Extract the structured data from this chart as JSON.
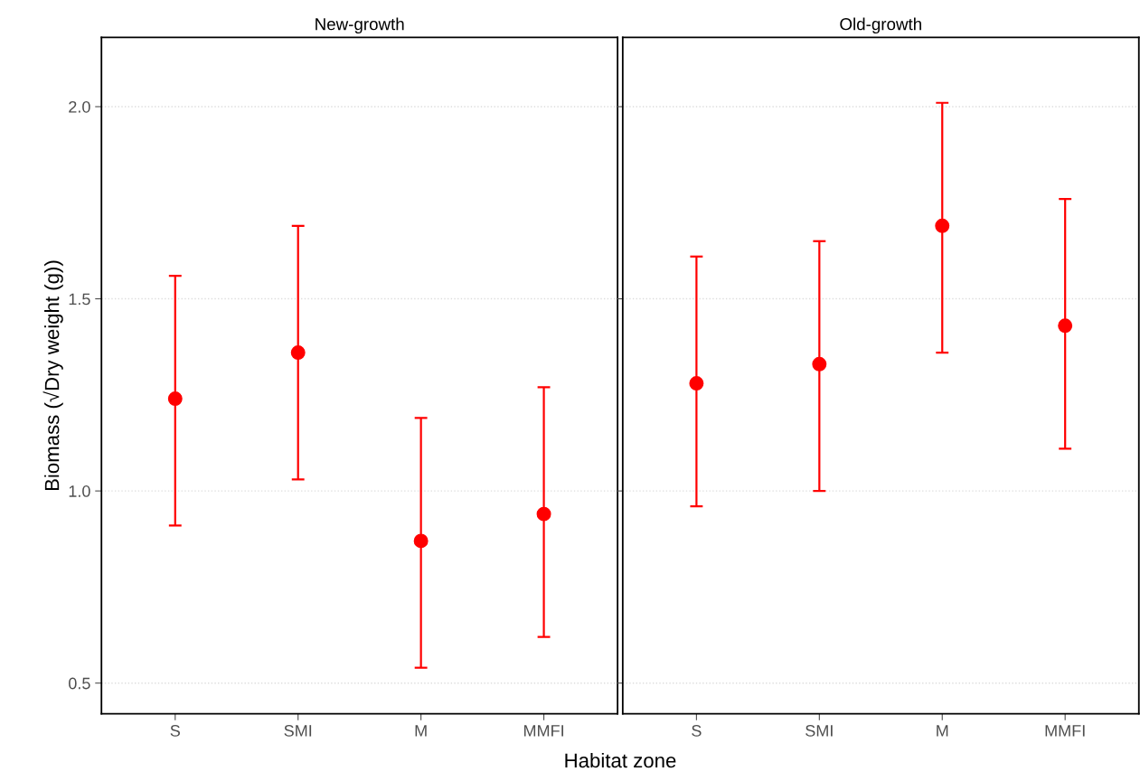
{
  "chart_data": [
    {
      "type": "scatter",
      "title": "New-growth",
      "xlabel": "Habitat zone",
      "ylabel": "Biomass (√Dry weight (g))",
      "categories": [
        "S",
        "SMI",
        "M",
        "MMFI"
      ],
      "series": [
        {
          "color": "#ff0000",
          "values": [
            1.24,
            1.36,
            0.87,
            0.94
          ],
          "errors": [
            [
              0.91,
              1.56
            ],
            [
              1.03,
              1.69
            ],
            [
              0.54,
              1.19
            ],
            [
              0.62,
              1.27
            ]
          ]
        }
      ],
      "ylim": [
        0.42,
        2.18
      ],
      "yticks": [
        {
          "value": 0.5,
          "label": "0.5"
        },
        {
          "value": 1.0,
          "label": "1.0"
        },
        {
          "value": 1.5,
          "label": "1.5"
        },
        {
          "value": 2.0,
          "label": "2.0"
        }
      ],
      "grid": "y",
      "marker": "circle"
    },
    {
      "type": "scatter",
      "title": "Old-growth",
      "categories": [
        "S",
        "SMI",
        "M",
        "MMFI"
      ],
      "series": [
        {
          "color": "#ff0000",
          "values": [
            1.28,
            1.33,
            1.69,
            1.43
          ],
          "errors": [
            [
              0.96,
              1.61
            ],
            [
              1.0,
              1.65
            ],
            [
              1.36,
              2.01
            ],
            [
              1.11,
              1.76
            ]
          ]
        }
      ],
      "ylim": [
        0.42,
        2.18
      ],
      "yticks": [
        0.5,
        1.0,
        1.5,
        2.0
      ],
      "grid": "y",
      "marker": "circle",
      "tick_labels": "x"
    }
  ]
}
